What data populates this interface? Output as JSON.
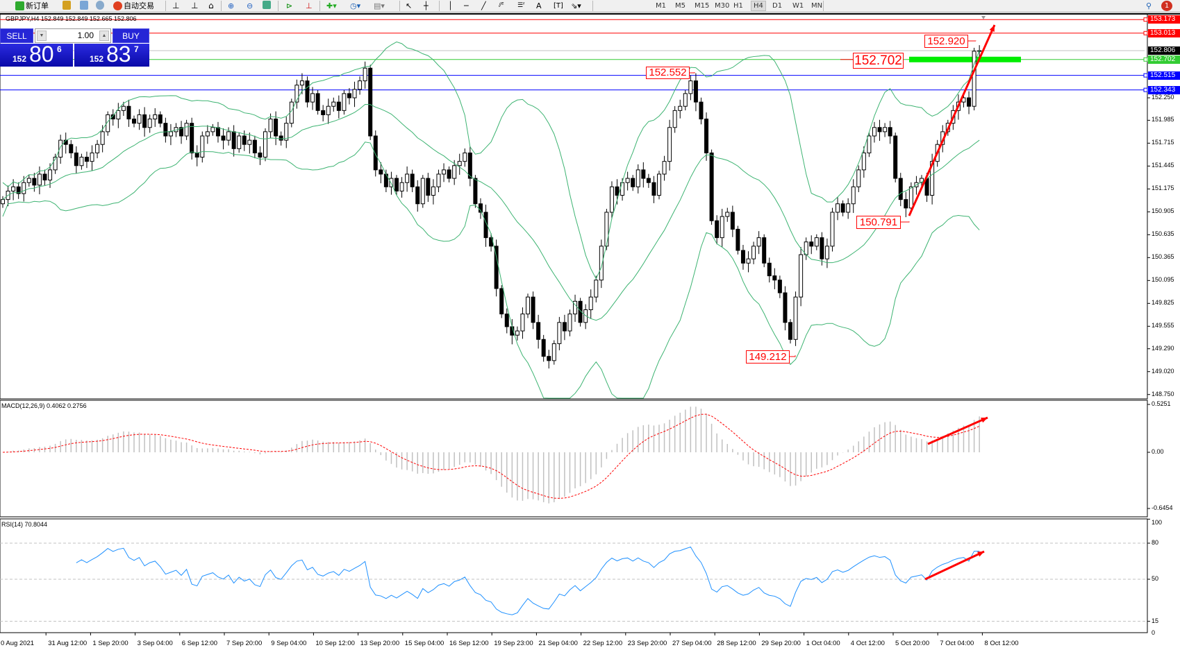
{
  "toolbar": {
    "new_order": "新订单",
    "auto_trading": "自动交易",
    "timeframes": [
      "M1",
      "M5",
      "M15",
      "M30",
      "H1",
      "H4",
      "D1",
      "W1",
      "MN"
    ],
    "selected_timeframe": "H4",
    "notification_count": "1"
  },
  "chart": {
    "header": "GBPJPY,H4  152.849 152.849 152.665 152.806",
    "one_click": {
      "sell_label": "SELL",
      "buy_label": "BUY",
      "lot": "1.00",
      "sell_price": {
        "prefix": "152",
        "big": "80",
        "sup": "6"
      },
      "buy_price": {
        "prefix": "152",
        "big": "83",
        "sup": "7"
      }
    },
    "price_ticks": [
      "152.250",
      "151.985",
      "151.715",
      "151.445",
      "151.175",
      "150.905",
      "150.635",
      "150.365",
      "150.095",
      "149.825",
      "149.555",
      "149.290",
      "149.020",
      "148.750"
    ],
    "levels": [
      {
        "price": 153.173,
        "label": "153.173",
        "color": "#ff0000"
      },
      {
        "price": 153.013,
        "label": "153.013",
        "color": "#ff0000"
      },
      {
        "price": 152.806,
        "label": "152.806",
        "color": "#000000",
        "line": "#c0c0c0"
      },
      {
        "price": 152.702,
        "label": "152.702",
        "color": "#33cc33"
      },
      {
        "price": 152.515,
        "label": "152.515",
        "color": "#0000ff"
      },
      {
        "price": 152.343,
        "label": "152.343",
        "color": "#0000ff"
      }
    ],
    "annotations": [
      "152.552",
      "152.920",
      "152.702",
      "150.791",
      "149.212"
    ],
    "bollinger_color": "#3cb371",
    "closes": [
      151.05,
      151.15,
      151.2,
      151.12,
      151.25,
      151.3,
      151.22,
      151.35,
      151.28,
      151.4,
      151.55,
      151.75,
      151.7,
      151.6,
      151.45,
      151.55,
      151.5,
      151.6,
      151.7,
      151.85,
      152.05,
      152.0,
      152.1,
      152.15,
      152.0,
      151.95,
      152.05,
      151.9,
      152.0,
      152.05,
      151.95,
      151.8,
      151.85,
      151.9,
      151.8,
      151.95,
      151.6,
      151.55,
      151.8,
      151.85,
      151.9,
      151.8,
      151.75,
      151.85,
      151.65,
      151.8,
      151.7,
      151.75,
      151.6,
      151.55,
      151.85,
      152.0,
      151.8,
      151.75,
      151.95,
      152.2,
      152.4,
      152.45,
      152.2,
      152.3,
      152.1,
      152.05,
      152.15,
      152.2,
      152.1,
      152.3,
      152.25,
      152.35,
      152.45,
      152.6,
      151.8,
      151.4,
      151.35,
      151.2,
      151.3,
      151.15,
      151.25,
      151.35,
      151.2,
      151.0,
      151.3,
      151.1,
      151.2,
      151.35,
      151.4,
      151.3,
      151.45,
      151.5,
      151.6,
      151.3,
      151.0,
      150.9,
      150.6,
      150.5,
      150.0,
      149.7,
      149.55,
      149.45,
      149.5,
      149.7,
      149.9,
      149.6,
      149.4,
      149.2,
      149.15,
      149.35,
      149.6,
      149.5,
      149.7,
      149.85,
      149.6,
      149.75,
      149.9,
      150.1,
      150.5,
      150.9,
      151.2,
      151.1,
      151.25,
      151.3,
      151.2,
      151.4,
      151.3,
      151.25,
      151.1,
      151.35,
      151.5,
      151.9,
      152.1,
      152.15,
      152.3,
      152.45,
      152.2,
      152.0,
      151.6,
      150.8,
      150.6,
      150.85,
      150.9,
      150.7,
      150.45,
      150.3,
      150.35,
      150.5,
      150.6,
      150.3,
      150.15,
      150.1,
      149.95,
      149.6,
      149.4,
      149.9,
      150.4,
      150.55,
      150.5,
      150.6,
      150.35,
      150.5,
      150.9,
      151.0,
      150.9,
      151.0,
      151.2,
      151.4,
      151.6,
      151.8,
      151.9,
      151.85,
      151.9,
      151.8,
      151.3,
      151.05,
      150.95,
      151.2,
      151.25,
      151.3,
      151.1,
      151.5,
      151.7,
      151.85,
      151.95,
      152.1,
      152.2,
      152.25,
      152.15,
      152.8,
      152.806
    ]
  },
  "macd": {
    "label": "MACD(12,26,9) 0.4062 0.2756",
    "ticks": [
      "0.5251",
      "0.00",
      "-0.6454"
    ],
    "range": [
      -0.6454,
      0.5251
    ]
  },
  "rsi": {
    "label": "RSI(14) 70.8044",
    "ticks": [
      "100",
      "80",
      "50",
      "15",
      "0"
    ],
    "levels": [
      80,
      50,
      15
    ]
  },
  "time_axis": [
    "0 Aug 2021",
    "31 Aug 12:00",
    "1 Sep 20:00",
    "3 Sep 04:00",
    "6 Sep 12:00",
    "7 Sep 20:00",
    "9 Sep 04:00",
    "10 Sep 12:00",
    "13 Sep 20:00",
    "15 Sep 04:00",
    "16 Sep 12:00",
    "19 Sep 23:00",
    "21 Sep 04:00",
    "22 Sep 12:00",
    "23 Sep 20:00",
    "27 Sep 04:00",
    "28 Sep 12:00",
    "29 Sep 20:00",
    "1 Oct 04:00",
    "4 Oct 12:00",
    "5 Oct 20:00",
    "7 Oct 04:00",
    "8 Oct 12:00"
  ]
}
